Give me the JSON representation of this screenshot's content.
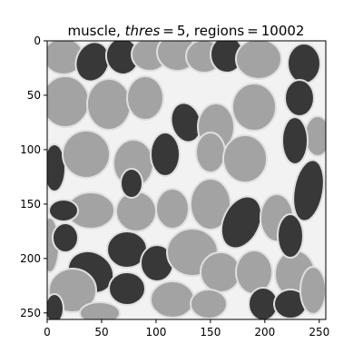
{
  "figure": {
    "title_main": "muscle, ",
    "title_var": "thres",
    "title_rest": " = 5, regions = 10002"
  },
  "axes": {
    "xlim": [
      0,
      256
    ],
    "ylim": [
      256,
      0
    ],
    "x_ticks": [
      "0",
      "50",
      "100",
      "150",
      "200",
      "250"
    ],
    "y_ticks": [
      "0",
      "50",
      "100",
      "150",
      "200",
      "250"
    ]
  },
  "image": {
    "description_name": "muscle-fiber-micrograph",
    "colormap": "gray",
    "background_color": "#f2f2f2",
    "light_fiber_color": "#a8a8a8",
    "dark_fiber_color": "#3a3a3a"
  }
}
